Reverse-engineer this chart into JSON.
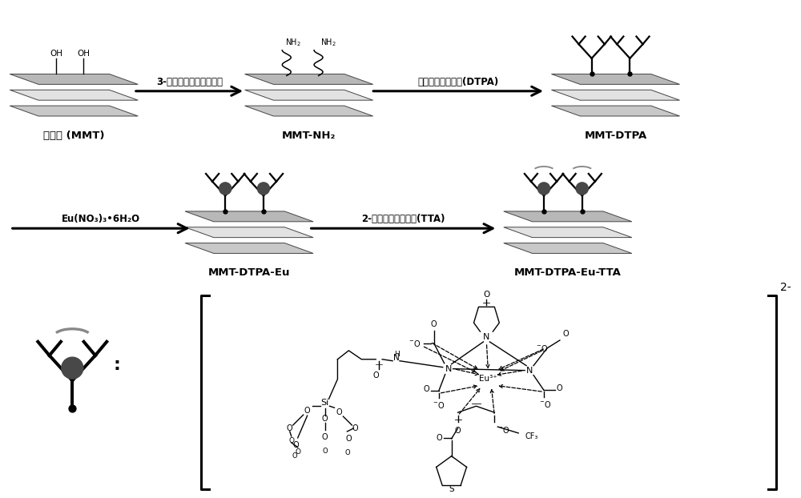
{
  "bg_color": "#ffffff",
  "step1_reagent": "3-氨基丙基三乙氧基硅烷",
  "step2_reagent": "二乙基三胺五乙酸(DTPA)",
  "step3_reagent": "Eu(NO₃)₃•6H₂O",
  "step4_reagent": "2-噻吩甲酰三氟丙酮(TTA)",
  "label_mmt": "蒙脱土 (MMT)",
  "label_mmt_nh2": "MMT-NH₂",
  "label_mmt_dtpa": "MMT-DTPA",
  "label_mmt_dtpa_eu": "MMT-DTPA-Eu",
  "label_mmt_dtpa_eu_tta": "MMT-DTPA-Eu-TTA",
  "charge_label": "2-"
}
